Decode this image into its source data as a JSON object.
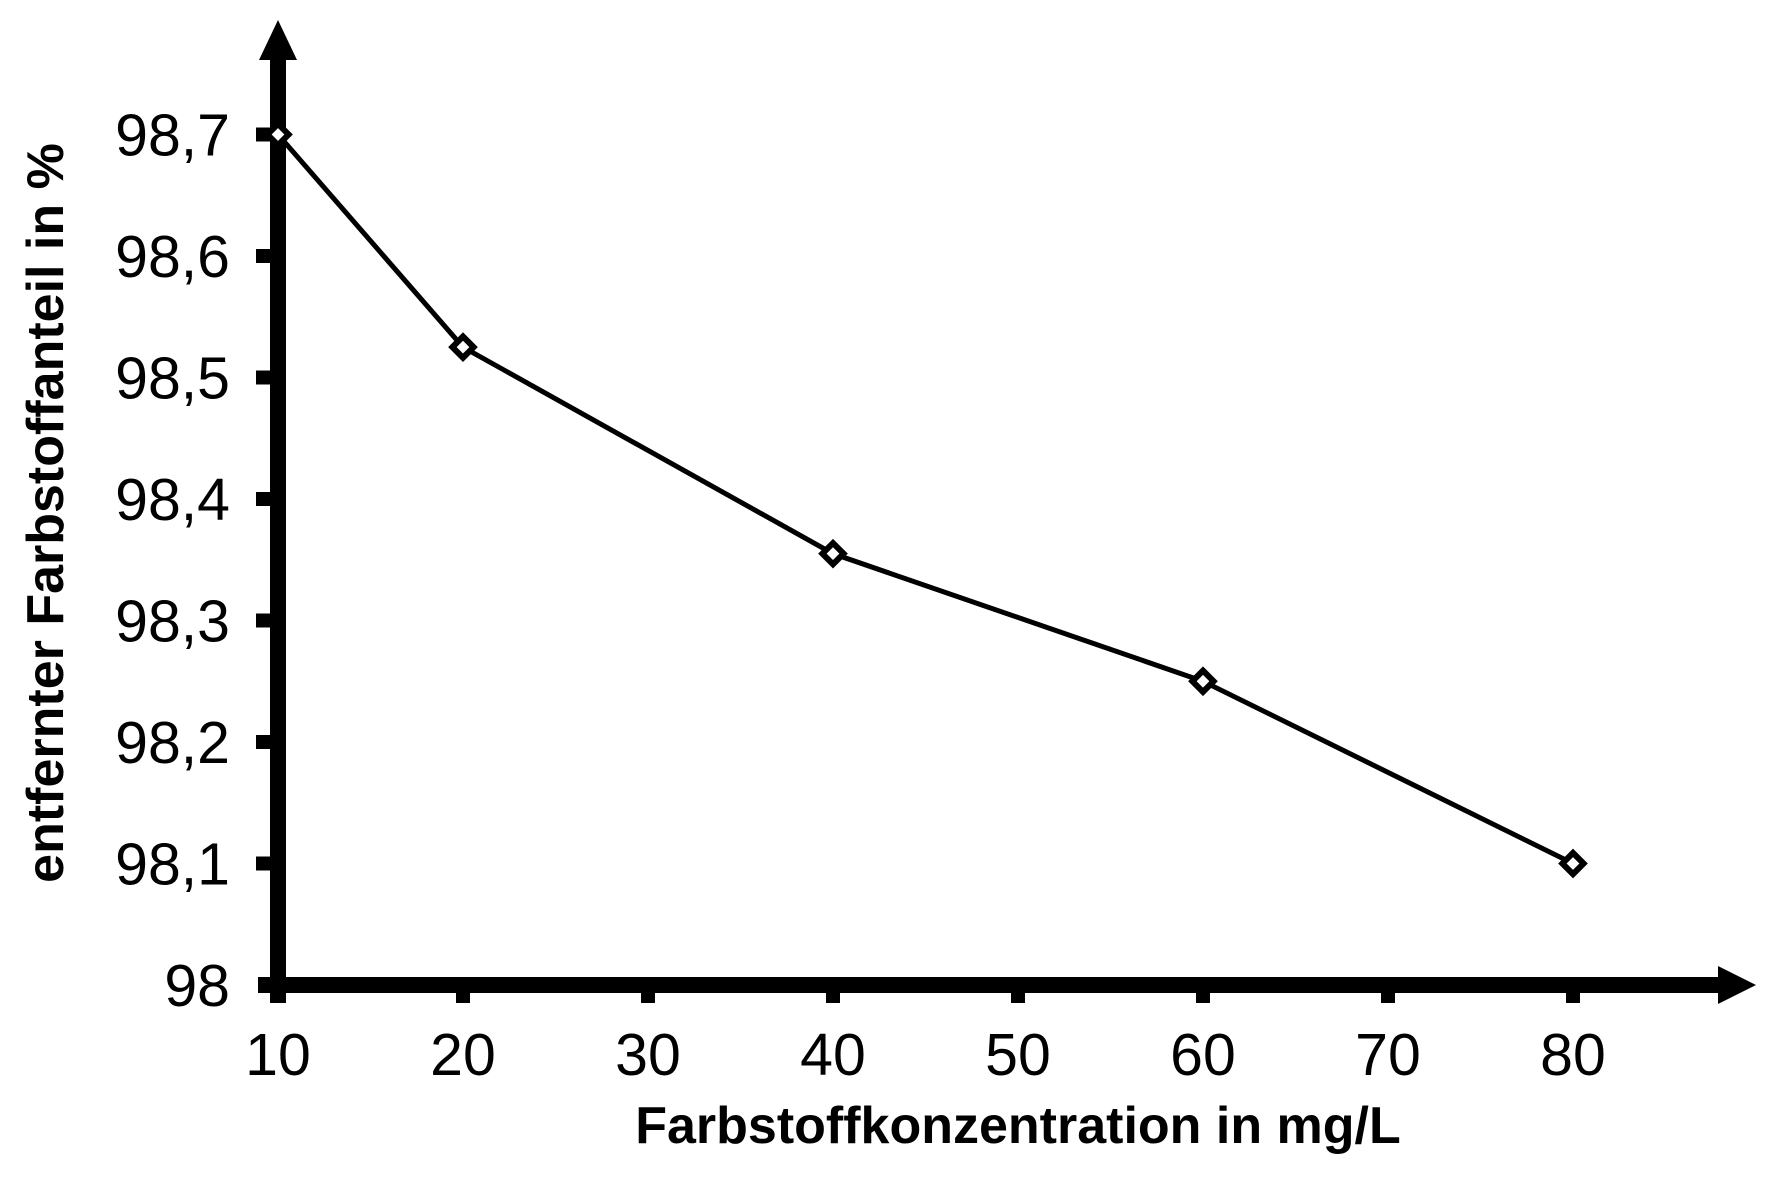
{
  "chart_data": {
    "type": "line",
    "title": "",
    "xlabel": "Farbstoffkonzentration in mg/L",
    "ylabel": "entfernter Farbstoffanteil in %",
    "series": [
      {
        "name": "entfernter Farbstoffanteil",
        "x": [
          10,
          20,
          40,
          60,
          80
        ],
        "y": [
          98.7,
          98.525,
          98.355,
          98.25,
          98.1
        ]
      }
    ],
    "x_ticks": [
      10,
      20,
      30,
      40,
      50,
      60,
      70,
      80
    ],
    "x_tick_labels": [
      "10",
      "20",
      "30",
      "40",
      "50",
      "60",
      "70",
      "80"
    ],
    "y_ticks": [
      98,
      98.1,
      98.2,
      98.3,
      98.4,
      98.5,
      98.6,
      98.7
    ],
    "y_tick_labels": [
      "98",
      "98,1",
      "98,2",
      "98,3",
      "98,4",
      "98,5",
      "98,6",
      "98,7"
    ],
    "xlim": [
      10,
      90
    ],
    "ylim": [
      98,
      98.79
    ],
    "grid": false,
    "legend": "none",
    "marker": "hollow-diamond",
    "line_color": "#000000",
    "axis_color": "#000000",
    "background_color": "#ffffff",
    "decimal_separator": "comma"
  }
}
